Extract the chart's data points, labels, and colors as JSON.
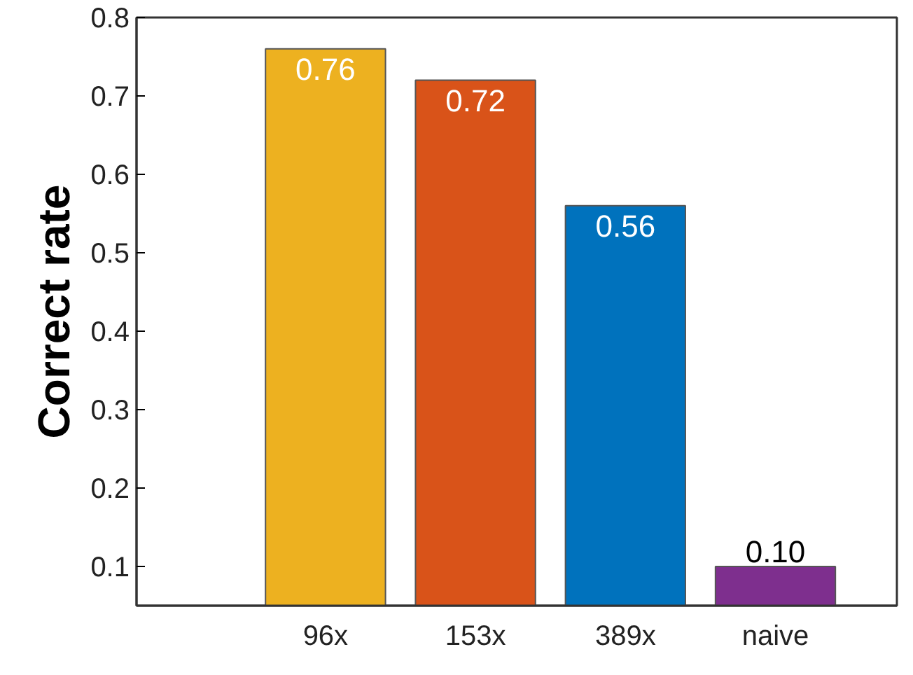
{
  "chart_data": {
    "type": "bar",
    "ylabel": "Correct rate",
    "categories": [
      "96x",
      "153x",
      "389x",
      "naive"
    ],
    "values": [
      0.76,
      0.72,
      0.56,
      0.1
    ],
    "colors": [
      "#edb120",
      "#d95319",
      "#0072bd",
      "#7e2f8e"
    ],
    "value_labels": [
      "0.76",
      "0.72",
      "0.56",
      "0.10"
    ],
    "ylim": [
      0.05,
      0.8
    ],
    "yticks": [
      0.1,
      0.2,
      0.3,
      0.4,
      0.5,
      0.6,
      0.7,
      0.8
    ],
    "grid": false
  }
}
